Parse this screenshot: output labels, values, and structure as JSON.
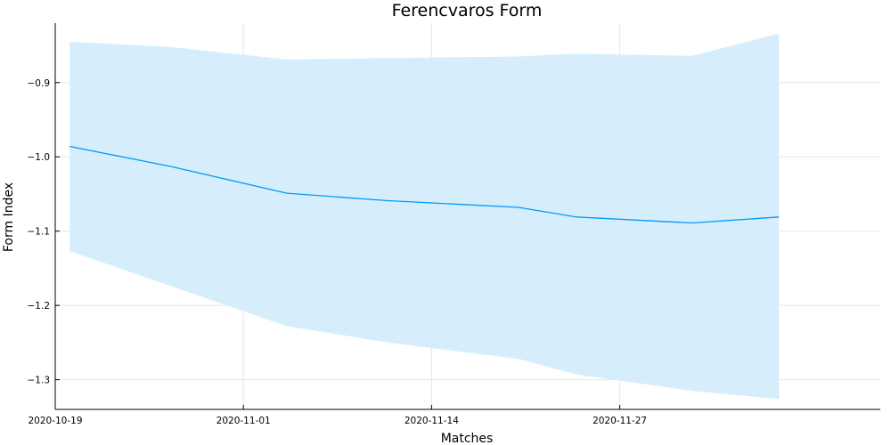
{
  "chart_data": {
    "type": "line",
    "title": "Ferencvaros Form",
    "xlabel": "Matches",
    "ylabel": "Form Index",
    "x": [
      "2020-10-20",
      "2020-10-27",
      "2020-11-04",
      "2020-11-11",
      "2020-11-20",
      "2020-11-24",
      "2020-12-02",
      "2020-12-08"
    ],
    "series": [
      {
        "values": [
          -0.986,
          -1.013,
          -1.049,
          -1.059,
          -1.068,
          -1.081,
          -1.089,
          -1.081
        ],
        "lower": [
          -1.127,
          -1.174,
          -1.228,
          -1.25,
          -1.272,
          -1.293,
          -1.315,
          -1.326
        ],
        "upper": [
          -0.845,
          -0.852,
          -0.869,
          -0.867,
          -0.865,
          -0.861,
          -0.864,
          -0.834
        ],
        "color": "#009AFA",
        "band_color": "#D6EEFC"
      }
    ],
    "xticks": [
      "2020-10-19",
      "2020-11-01",
      "2020-11-14",
      "2020-11-27"
    ],
    "yticks": [
      -0.9,
      -1.0,
      -1.1,
      -1.2,
      -1.3
    ],
    "ytick_labels": [
      "−0.9",
      "−1.0",
      "−1.1",
      "−1.2",
      "−1.3"
    ],
    "xlim": [
      "2020-10-19",
      "2020-12-15"
    ],
    "ylim": [
      -1.34,
      -0.82
    ],
    "grid": true,
    "legend": "none"
  }
}
